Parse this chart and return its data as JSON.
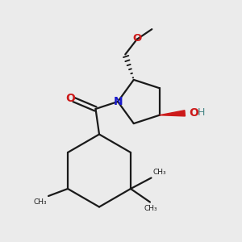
{
  "bg_color": "#ebebeb",
  "bond_color": "#1a1a1a",
  "N_color": "#1a1acc",
  "O_color": "#cc1a1a",
  "OH_O_color": "#cc1a1a",
  "OH_H_color": "#4a8888",
  "line_width": 1.6,
  "figsize": [
    3.0,
    3.0
  ],
  "dpi": 100,
  "xlim": [
    0,
    10
  ],
  "ylim": [
    0,
    10
  ]
}
